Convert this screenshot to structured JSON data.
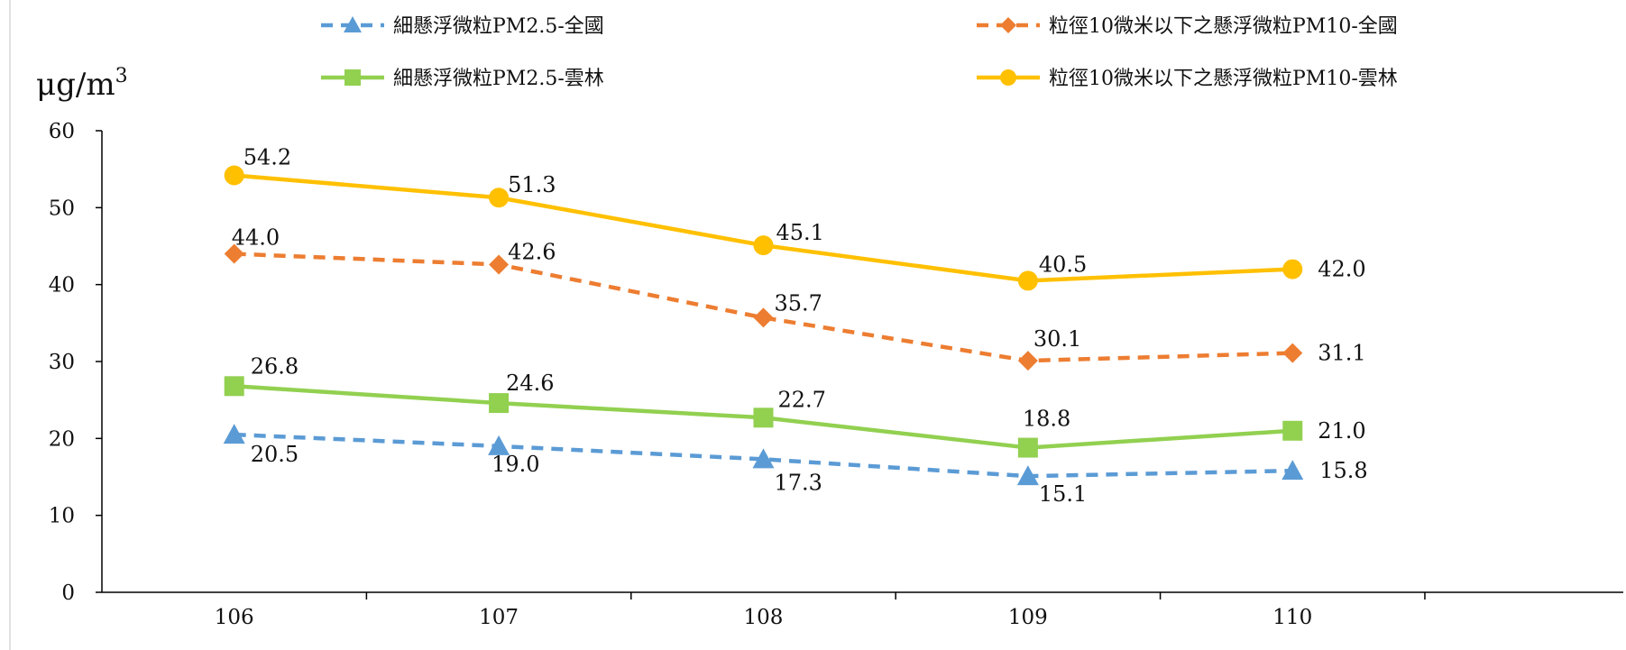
{
  "chart_data": {
    "type": "line",
    "unit": "μg/m",
    "unit_sup": "3",
    "categories": [
      "106",
      "107",
      "108",
      "109",
      "110"
    ],
    "ylim": [
      0,
      60
    ],
    "y_ticks": [
      "0",
      "10",
      "20",
      "30",
      "40",
      "50",
      "60"
    ],
    "grid": false,
    "legend_position": "top",
    "series": [
      {
        "name": "細懸浮微粒PM2.5-全國",
        "values": [
          20.5,
          19.0,
          17.3,
          15.1,
          15.8
        ],
        "labels": [
          "20.5",
          "19.0",
          "17.3",
          "15.1",
          "15.8"
        ],
        "color": "#5B9BD5",
        "dash": true,
        "marker": "triangle"
      },
      {
        "name": "粒徑10微米以下之懸浮微粒PM10-全國",
        "values": [
          44.0,
          42.6,
          35.7,
          30.1,
          31.1
        ],
        "labels": [
          "44.0",
          "42.6",
          "35.7",
          "30.1",
          "31.1"
        ],
        "color": "#ED7D31",
        "dash": true,
        "marker": "diamond"
      },
      {
        "name": "細懸浮微粒PM2.5-雲林",
        "values": [
          26.8,
          24.6,
          22.7,
          18.8,
          21.0
        ],
        "labels": [
          "26.8",
          "24.6",
          "22.7",
          "18.8",
          "21.0"
        ],
        "color": "#92D050",
        "dash": false,
        "marker": "square"
      },
      {
        "name": "粒徑10微米以下之懸浮微粒PM10-雲林",
        "values": [
          54.2,
          51.3,
          45.1,
          40.5,
          42.0
        ],
        "labels": [
          "54.2",
          "51.3",
          "45.1",
          "40.5",
          "42.0"
        ],
        "color": "#FFC000",
        "dash": false,
        "marker": "circle"
      }
    ]
  }
}
